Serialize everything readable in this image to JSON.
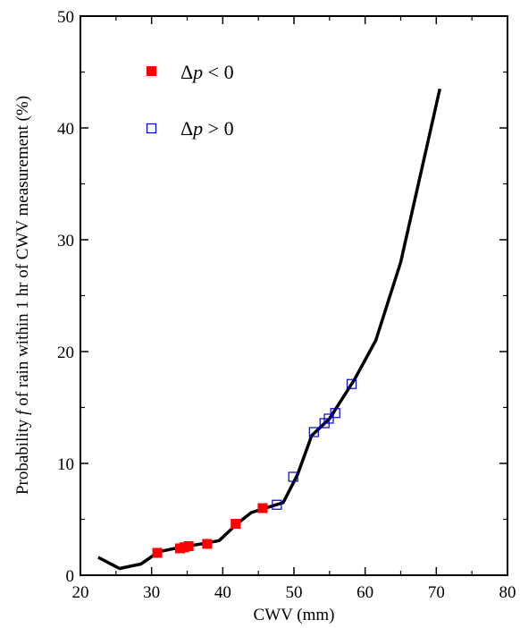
{
  "chart_data": {
    "type": "line",
    "xlabel": "CWV (mm)",
    "ylabel": "Probability f of rain within 1 hr of CWV measurement (%)",
    "ylabel_parts": [
      "Probability ",
      "f",
      " of rain within 1 hr of CWV measurement (%)"
    ],
    "xlim": [
      20,
      80
    ],
    "ylim": [
      0,
      50
    ],
    "xticks": [
      20,
      30,
      40,
      50,
      60,
      70,
      80
    ],
    "yticks": [
      0,
      10,
      20,
      30,
      40,
      50
    ],
    "grid": false,
    "legend": {
      "placement": "top-left",
      "entries": [
        {
          "prefix": "Δ",
          "var": "p",
          "suffix": " < 0",
          "marker": "filled-square",
          "color": "#ff0000"
        },
        {
          "prefix": "Δ",
          "var": "p",
          "suffix": " > 0",
          "marker": "open-square",
          "color": "#0000cc"
        }
      ]
    },
    "series": [
      {
        "style": "line",
        "color": "#000000",
        "x": [
          22.5,
          25.5,
          28.5,
          31,
          34,
          37,
          39.5,
          42,
          44,
          46,
          48.5,
          50.5,
          52.5,
          55,
          58.5,
          61.5,
          65,
          70.5
        ],
        "y": [
          1.6,
          0.6,
          1.0,
          2.1,
          2.5,
          2.8,
          3.1,
          4.6,
          5.6,
          6.0,
          6.5,
          9.0,
          12.5,
          14.0,
          17.5,
          21.0,
          28.0,
          43.5
        ]
      },
      {
        "style": "markers",
        "marker": "filled-square",
        "color": "#ff0000",
        "x": [
          30.8,
          34.0,
          34.6,
          35.2,
          37.8,
          41.8,
          45.6
        ],
        "y": [
          2.0,
          2.4,
          2.5,
          2.6,
          2.8,
          4.6,
          6.0
        ]
      },
      {
        "style": "markers",
        "marker": "open-square",
        "color": "#0000cc",
        "x": [
          47.6,
          49.9,
          52.8,
          54.3,
          54.9,
          55.8,
          58.1
        ],
        "y": [
          6.3,
          8.8,
          12.8,
          13.6,
          14.0,
          14.5,
          17.1
        ]
      }
    ]
  }
}
